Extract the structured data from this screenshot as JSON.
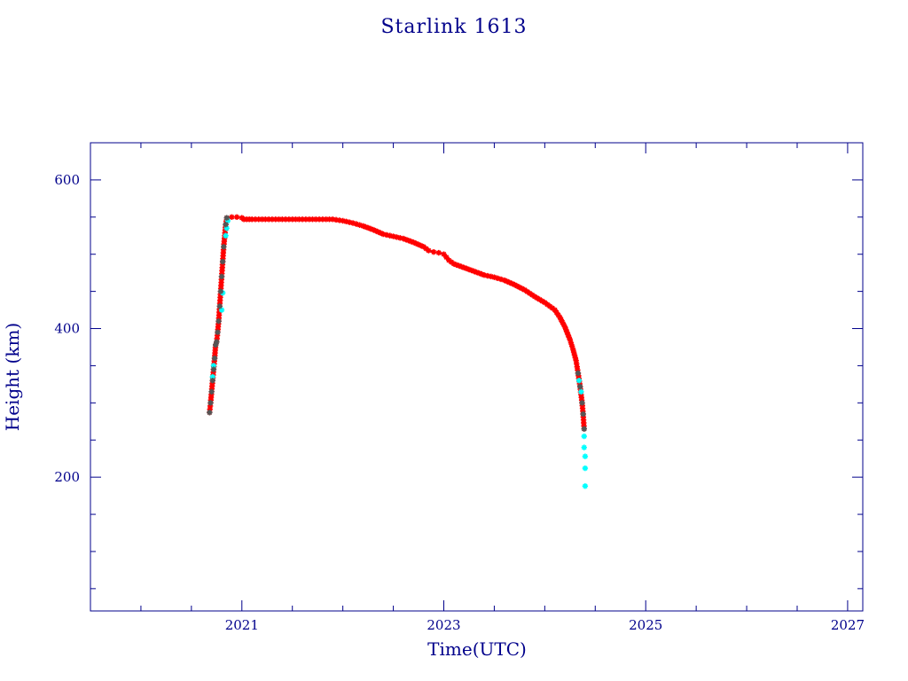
{
  "chart_data": {
    "type": "scatter",
    "title": "Starlink 1613",
    "xlabel": "Time(UTC)",
    "ylabel": "Height (km)",
    "xlim": [
      2019.5,
      2027.15
    ],
    "ylim": [
      20,
      650
    ],
    "x_ticks": [
      2021,
      2023,
      2025,
      2027
    ],
    "x_tick_labels": [
      "2021",
      "2023",
      "2025",
      "2027"
    ],
    "y_ticks": [
      200,
      400,
      600
    ],
    "y_tick_labels": [
      "200",
      "400",
      "600"
    ],
    "grid": false,
    "colors": {
      "axes": "#00008b",
      "main_series": "#ff0000",
      "highlight_series": "#00ffff",
      "star_markers": "#555555"
    },
    "series": [
      {
        "marker": "star",
        "color": "#ff0000",
        "points": [
          [
            2020.68,
            287
          ],
          [
            2020.69,
            300
          ],
          [
            2020.7,
            315
          ],
          [
            2020.71,
            330
          ],
          [
            2020.72,
            345
          ],
          [
            2020.73,
            360
          ],
          [
            2020.74,
            378
          ],
          [
            2020.75,
            382
          ],
          [
            2020.76,
            395
          ],
          [
            2020.77,
            410
          ],
          [
            2020.78,
            430
          ],
          [
            2020.79,
            450
          ],
          [
            2020.8,
            470
          ],
          [
            2020.81,
            490
          ],
          [
            2020.82,
            510
          ],
          [
            2020.84,
            540
          ],
          [
            2020.85,
            549
          ],
          [
            2020.9,
            550
          ],
          [
            2020.95,
            550
          ],
          [
            2021.0,
            549
          ],
          [
            2021.02,
            547
          ],
          [
            2021.1,
            547
          ],
          [
            2021.2,
            547
          ],
          [
            2021.3,
            547
          ],
          [
            2021.4,
            547
          ],
          [
            2021.5,
            547
          ],
          [
            2021.6,
            547
          ],
          [
            2021.7,
            547
          ],
          [
            2021.8,
            547
          ],
          [
            2021.9,
            547
          ],
          [
            2022.0,
            545
          ],
          [
            2022.1,
            542
          ],
          [
            2022.2,
            538
          ],
          [
            2022.3,
            533
          ],
          [
            2022.4,
            527
          ],
          [
            2022.5,
            524
          ],
          [
            2022.6,
            521
          ],
          [
            2022.7,
            516
          ],
          [
            2022.8,
            510
          ],
          [
            2022.85,
            505
          ],
          [
            2022.9,
            503
          ],
          [
            2022.95,
            502
          ],
          [
            2023.0,
            500
          ],
          [
            2023.05,
            492
          ],
          [
            2023.1,
            487
          ],
          [
            2023.2,
            482
          ],
          [
            2023.3,
            477
          ],
          [
            2023.4,
            472
          ],
          [
            2023.5,
            469
          ],
          [
            2023.6,
            465
          ],
          [
            2023.7,
            459
          ],
          [
            2023.8,
            452
          ],
          [
            2023.9,
            443
          ],
          [
            2024.0,
            435
          ],
          [
            2024.1,
            425
          ],
          [
            2024.15,
            415
          ],
          [
            2024.2,
            402
          ],
          [
            2024.25,
            385
          ],
          [
            2024.28,
            372
          ],
          [
            2024.31,
            357
          ],
          [
            2024.33,
            340
          ],
          [
            2024.35,
            322
          ],
          [
            2024.37,
            300
          ],
          [
            2024.38,
            285
          ],
          [
            2024.39,
            265
          ]
        ]
      },
      {
        "marker": "star",
        "color": "#00ffff",
        "points": [
          [
            2020.71,
            335
          ],
          [
            2020.72,
            350
          ],
          [
            2020.8,
            425
          ],
          [
            2020.81,
            448
          ],
          [
            2020.84,
            525
          ],
          [
            2020.85,
            535
          ],
          [
            2020.86,
            545
          ],
          [
            2024.34,
            330
          ],
          [
            2024.36,
            315
          ],
          [
            2024.39,
            255
          ],
          [
            2024.39,
            240
          ],
          [
            2024.4,
            228
          ],
          [
            2024.4,
            212
          ],
          [
            2024.4,
            188
          ]
        ]
      }
    ]
  }
}
